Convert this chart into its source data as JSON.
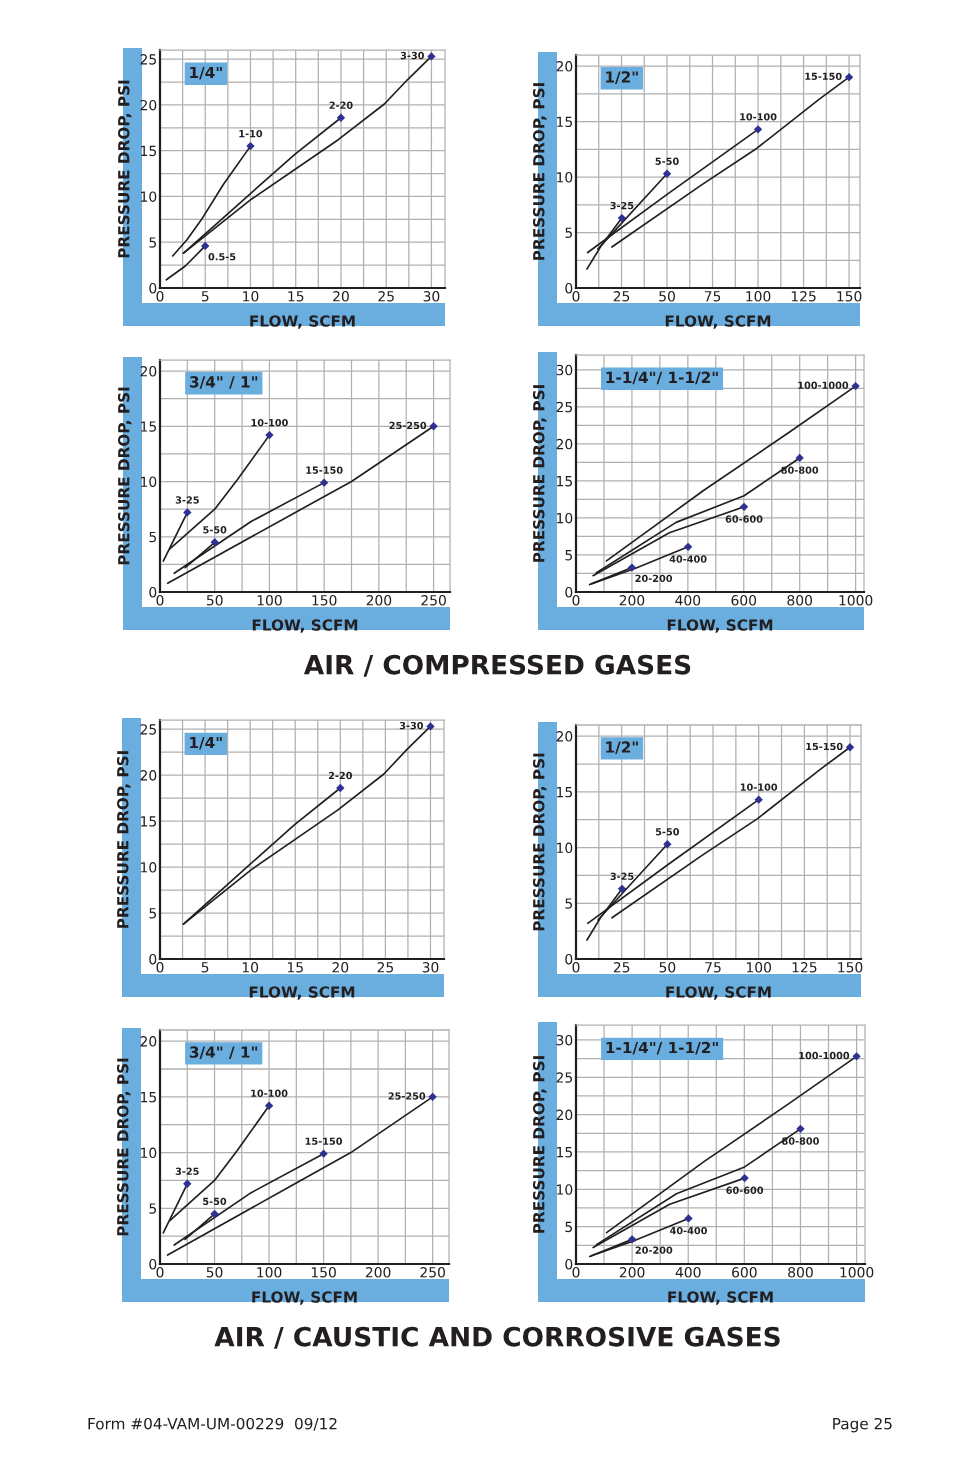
{
  "chart_data": [
    {
      "type": "line",
      "title": "1/4\"",
      "xlabel": "FLOW, SCFM",
      "ylabel": "PRESSURE DROP, PSI",
      "xlim": [
        0,
        31.5
      ],
      "ylim": [
        0,
        26
      ],
      "xticks": [
        0,
        5,
        10,
        15,
        20,
        25,
        30
      ],
      "yticks": [
        0,
        5,
        10,
        15,
        20,
        25
      ],
      "grid": true,
      "series": [
        {
          "name": "1-10",
          "color": "#231f20",
          "x": [
            1.4,
            3,
            4.6,
            7,
            10
          ],
          "values": [
            3.5,
            5.3,
            7.5,
            11.3,
            15.5
          ]
        },
        {
          "name": "0.5-5",
          "color": "#231f20",
          "x": [
            0.7,
            2.8,
            5
          ],
          "values": [
            0.9,
            2.4,
            4.6
          ]
        },
        {
          "name": "2-20",
          "color": "#231f20",
          "x": [
            2.6,
            10.1,
            14.9,
            20
          ],
          "values": [
            3.8,
            10.4,
            14.6,
            18.6
          ]
        },
        {
          "name": "3-30",
          "color": "#231f20",
          "x": [
            2.6,
            10.1,
            19.7,
            24.8,
            27.4,
            30
          ],
          "values": [
            3.8,
            9.7,
            16.2,
            20.1,
            22.8,
            25.3
          ]
        },
        {
          "type": "scatter",
          "marker": "diamond",
          "color": "#2e3192",
          "x": [
            10,
            5,
            20,
            30
          ],
          "values": [
            15.5,
            4.6,
            18.6,
            25.3
          ]
        }
      ]
    },
    {
      "type": "line",
      "title": "1/2\"",
      "xlabel": "FLOW, SCFM",
      "ylabel": "PRESSURE DROP, PSI",
      "xlim": [
        0,
        156
      ],
      "ylim": [
        0,
        21
      ],
      "xticks": [
        0,
        25,
        50,
        75,
        100,
        125,
        150
      ],
      "yticks": [
        0,
        5,
        10,
        15,
        20
      ],
      "grid": true,
      "series": [
        {
          "name": "3-25",
          "color": "#231f20",
          "x": [
            6,
            13.8,
            25.2
          ],
          "values": [
            1.7,
            3.8,
            6.3
          ]
        },
        {
          "name": "5-50",
          "color": "#231f20",
          "x": [
            12,
            50
          ],
          "values": [
            3.5,
            10.3
          ]
        },
        {
          "name": "10-100",
          "color": "#231f20",
          "x": [
            6.4,
            50.6,
            100
          ],
          "values": [
            3.2,
            8.5,
            14.3
          ]
        },
        {
          "name": "15-150",
          "color": "#231f20",
          "x": [
            19.7,
            69,
            99.4,
            133.5,
            150
          ],
          "values": [
            3.7,
            9.3,
            12.6,
            17,
            19
          ]
        },
        {
          "type": "scatter",
          "marker": "diamond",
          "color": "#2e3192",
          "x": [
            25.2,
            50,
            100,
            150
          ],
          "values": [
            6.3,
            10.3,
            14.3,
            19
          ]
        }
      ]
    },
    {
      "type": "line",
      "title": "3/4\" / 1\"",
      "xlabel": "FLOW, SCFM",
      "ylabel": "PRESSURE DROP, PSI",
      "xlim": [
        0,
        265
      ],
      "ylim": [
        0,
        21
      ],
      "xticks": [
        0,
        50,
        100,
        150,
        200,
        250
      ],
      "yticks": [
        0,
        5,
        10,
        15,
        20
      ],
      "grid": true,
      "series": [
        {
          "name": "3-25",
          "color": "#231f20",
          "x": [
            3,
            25
          ],
          "values": [
            2.8,
            7.2
          ]
        },
        {
          "name": "10-100",
          "color": "#231f20",
          "x": [
            9,
            50,
            71,
            100
          ],
          "values": [
            3.9,
            7.5,
            10.2,
            14.2
          ]
        },
        {
          "name": "5-50",
          "color": "#231f20",
          "x": [
            23,
            50
          ],
          "values": [
            2.2,
            4.5
          ]
        },
        {
          "name": "15-150",
          "color": "#231f20",
          "x": [
            13,
            83.6,
            150
          ],
          "values": [
            1.7,
            6.4,
            9.9
          ]
        },
        {
          "name": "25-250",
          "color": "#231f20",
          "x": [
            7,
            120,
            175,
            250
          ],
          "values": [
            0.8,
            7,
            10,
            15
          ]
        },
        {
          "type": "scatter",
          "marker": "diamond",
          "color": "#2e3192",
          "x": [
            25,
            100,
            50,
            150,
            250
          ],
          "values": [
            7.2,
            14.2,
            4.5,
            9.9,
            15
          ]
        }
      ]
    },
    {
      "type": "line",
      "title": "1-1/4\"/ 1-1/2\"",
      "xlabel": "FLOW, SCFM",
      "ylabel": "PRESSURE DROP, PSI",
      "xlim": [
        0,
        1030
      ],
      "ylim": [
        0,
        32
      ],
      "xticks": [
        0,
        200,
        400,
        600,
        800,
        1000
      ],
      "yticks": [
        0,
        5,
        10,
        15,
        20,
        25,
        30
      ],
      "grid": true,
      "series": [
        {
          "name": "20-200",
          "color": "#231f20",
          "x": [
            48.6,
            200
          ],
          "values": [
            1.0,
            3.3
          ]
        },
        {
          "name": "40-400",
          "color": "#231f20",
          "x": [
            55,
            213,
            401
          ],
          "values": [
            1.1,
            3.2,
            6.1
          ]
        },
        {
          "name": "60-600",
          "color": "#231f20",
          "x": [
            61,
            334,
            601
          ],
          "values": [
            2.2,
            8,
            11.5
          ]
        },
        {
          "name": "80-800",
          "color": "#231f20",
          "x": [
            73,
            358,
            601,
            800
          ],
          "values": [
            2.6,
            9.4,
            13,
            18.1
          ]
        },
        {
          "name": "100-1000",
          "color": "#231f20",
          "x": [
            109,
            456,
            760,
            1000
          ],
          "values": [
            4.2,
            13.7,
            21.5,
            27.8
          ]
        },
        {
          "type": "scatter",
          "marker": "diamond",
          "color": "#2e3192",
          "x": [
            200,
            401,
            601,
            800,
            1000
          ],
          "values": [
            3.3,
            6.1,
            11.5,
            18.1,
            27.8
          ]
        }
      ],
      "annotations": [
        "AIR / COMPRESSED GASES"
      ]
    },
    {
      "type": "line",
      "title": "1/4\"",
      "xlabel": "FLOW, SCFM",
      "ylabel": "PRESSURE DROP, PSI",
      "xlim": [
        0,
        31.5
      ],
      "ylim": [
        0,
        26
      ],
      "xticks": [
        0,
        5,
        10,
        15,
        20,
        25,
        30
      ],
      "yticks": [
        0,
        5,
        10,
        15,
        20,
        25
      ],
      "grid": true,
      "series": [
        {
          "name": "2-20",
          "color": "#231f20",
          "x": [
            2.6,
            10.1,
            14.9,
            20
          ],
          "values": [
            3.8,
            10.4,
            14.6,
            18.6
          ]
        },
        {
          "name": "3-30",
          "color": "#231f20",
          "x": [
            2.6,
            10.1,
            19.7,
            24.8,
            27.4,
            30
          ],
          "values": [
            3.8,
            9.7,
            16.2,
            20.1,
            22.8,
            25.3
          ]
        },
        {
          "type": "scatter",
          "marker": "diamond",
          "color": "#2e3192",
          "x": [
            20,
            30
          ],
          "values": [
            18.6,
            25.3
          ]
        }
      ]
    },
    {
      "type": "line",
      "title": "1/2\"",
      "xlabel": "FLOW, SCFM",
      "ylabel": "PRESSURE DROP, PSI",
      "xlim": [
        0,
        156
      ],
      "ylim": [
        0,
        21
      ],
      "xticks": [
        0,
        25,
        50,
        75,
        100,
        125,
        150
      ],
      "yticks": [
        0,
        5,
        10,
        15,
        20
      ],
      "grid": true,
      "series": [
        {
          "name": "3-25",
          "color": "#231f20",
          "x": [
            6,
            13.8,
            25.2
          ],
          "values": [
            1.7,
            3.8,
            6.3
          ]
        },
        {
          "name": "5-50",
          "color": "#231f20",
          "x": [
            12,
            50
          ],
          "values": [
            3.5,
            10.3
          ]
        },
        {
          "name": "10-100",
          "color": "#231f20",
          "x": [
            6.4,
            50.6,
            100
          ],
          "values": [
            3.2,
            8.5,
            14.3
          ]
        },
        {
          "name": "15-150",
          "color": "#231f20",
          "x": [
            19.7,
            69,
            99.4,
            133.5,
            150
          ],
          "values": [
            3.7,
            9.3,
            12.6,
            17,
            19
          ]
        },
        {
          "type": "scatter",
          "marker": "diamond",
          "color": "#2e3192",
          "x": [
            25.2,
            50,
            100,
            150
          ],
          "values": [
            6.3,
            10.3,
            14.3,
            19
          ]
        }
      ]
    },
    {
      "type": "line",
      "title": "3/4\" / 1\"",
      "xlabel": "FLOW, SCFM",
      "ylabel": "PRESSURE DROP, PSI",
      "xlim": [
        0,
        265
      ],
      "ylim": [
        0,
        21
      ],
      "xticks": [
        0,
        50,
        100,
        150,
        200,
        250
      ],
      "yticks": [
        0,
        5,
        10,
        15,
        20
      ],
      "grid": true,
      "series": [
        {
          "name": "3-25",
          "color": "#231f20",
          "x": [
            3,
            25
          ],
          "values": [
            2.8,
            7.2
          ]
        },
        {
          "name": "10-100",
          "color": "#231f20",
          "x": [
            9,
            50,
            71,
            100
          ],
          "values": [
            3.9,
            7.5,
            10.2,
            14.2
          ]
        },
        {
          "name": "5-50",
          "color": "#231f20",
          "x": [
            23,
            50
          ],
          "values": [
            2.2,
            4.5
          ]
        },
        {
          "name": "15-150",
          "color": "#231f20",
          "x": [
            13,
            83.6,
            150
          ],
          "values": [
            1.7,
            6.4,
            9.9
          ]
        },
        {
          "name": "25-250",
          "color": "#231f20",
          "x": [
            7,
            120,
            175,
            250
          ],
          "values": [
            0.8,
            7,
            10,
            15
          ]
        },
        {
          "type": "scatter",
          "marker": "diamond",
          "color": "#2e3192",
          "x": [
            25,
            100,
            50,
            150,
            250
          ],
          "values": [
            7.2,
            14.2,
            4.5,
            9.9,
            15
          ]
        }
      ]
    },
    {
      "type": "line",
      "title": "1-1/4\"/ 1-1/2\"",
      "xlabel": "FLOW, SCFM",
      "ylabel": "PRESSURE DROP, PSI",
      "xlim": [
        0,
        1030
      ],
      "ylim": [
        0,
        32
      ],
      "xticks": [
        0,
        200,
        400,
        600,
        800,
        1000
      ],
      "yticks": [
        0,
        5,
        10,
        15,
        20,
        25,
        30
      ],
      "grid": true,
      "series": [
        {
          "name": "20-200",
          "color": "#231f20",
          "x": [
            48.6,
            200
          ],
          "values": [
            1.0,
            3.3
          ]
        },
        {
          "name": "40-400",
          "color": "#231f20",
          "x": [
            55,
            213,
            401
          ],
          "values": [
            1.1,
            3.2,
            6.1
          ]
        },
        {
          "name": "60-600",
          "color": "#231f20",
          "x": [
            61,
            334,
            601
          ],
          "values": [
            2.2,
            8,
            11.5
          ]
        },
        {
          "name": "80-800",
          "color": "#231f20",
          "x": [
            73,
            358,
            601,
            800
          ],
          "values": [
            2.6,
            9.4,
            13,
            18.1
          ]
        },
        {
          "name": "100-1000",
          "color": "#231f20",
          "x": [
            109,
            456,
            760,
            1000
          ],
          "values": [
            4.2,
            13.7,
            21.5,
            27.8
          ]
        },
        {
          "type": "scatter",
          "marker": "diamond",
          "color": "#2e3192",
          "x": [
            200,
            401,
            601,
            800,
            1000
          ],
          "values": [
            3.3,
            6.1,
            11.5,
            18.1,
            27.8
          ]
        }
      ],
      "annotations": [
        "AIR / CAUSTIC AND CORROSIVE GASES",
        "Form #04-VAM-UM-00229  09/12",
        "Page 25"
      ]
    }
  ]
}
